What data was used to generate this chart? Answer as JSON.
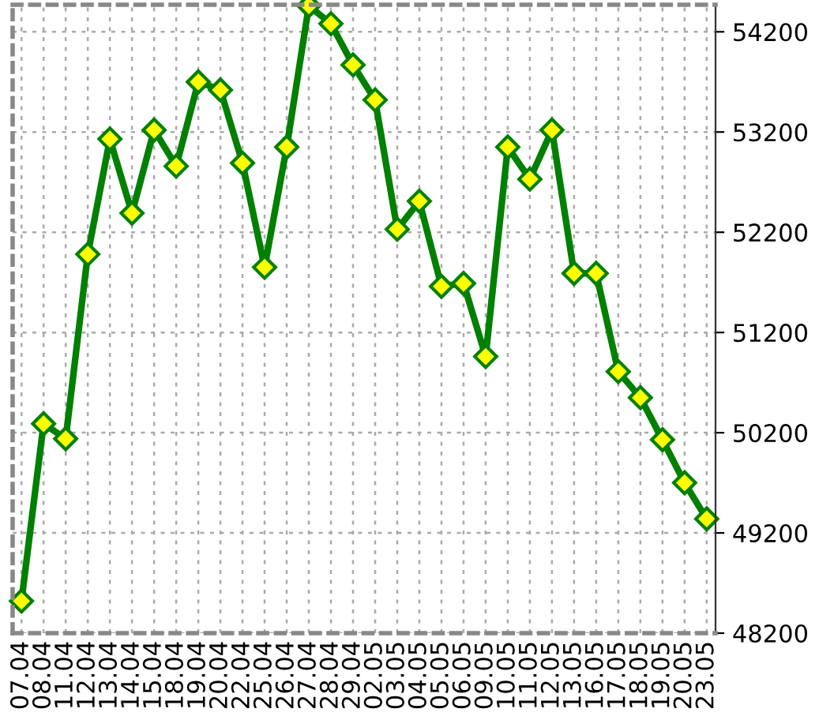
{
  "chart_data": {
    "type": "line",
    "categories": [
      "07.04",
      "08.04",
      "11.04",
      "12.04",
      "13.04",
      "14.04",
      "15.04",
      "18.04",
      "19.04",
      "20.04",
      "22.04",
      "25.04",
      "26.04",
      "27.04",
      "28.04",
      "29.04",
      "02.05",
      "03.05",
      "04.05",
      "05.05",
      "06.05",
      "09.05",
      "10.05",
      "11.05",
      "12.05",
      "13.05",
      "16.05",
      "17.05",
      "18.05",
      "19.05",
      "20.05",
      "23.05"
    ],
    "series": [
      {
        "color": "#008000",
        "values": [
          48520,
          50290,
          50140,
          51980,
          53130,
          52390,
          53220,
          52860,
          53700,
          53620,
          52890,
          51850,
          53050,
          54460,
          54280,
          53870,
          53520,
          52230,
          52510,
          51660,
          51690,
          50960,
          53050,
          52730,
          53220,
          51790,
          51790,
          50810,
          50550,
          50130,
          49700,
          49340
        ]
      }
    ],
    "ylim": [
      48200,
      54470
    ],
    "yticks": [
      48200,
      49200,
      50200,
      51200,
      52200,
      53200,
      54200
    ],
    "grid": true,
    "marker": "diamond",
    "line_style": "solid"
  }
}
